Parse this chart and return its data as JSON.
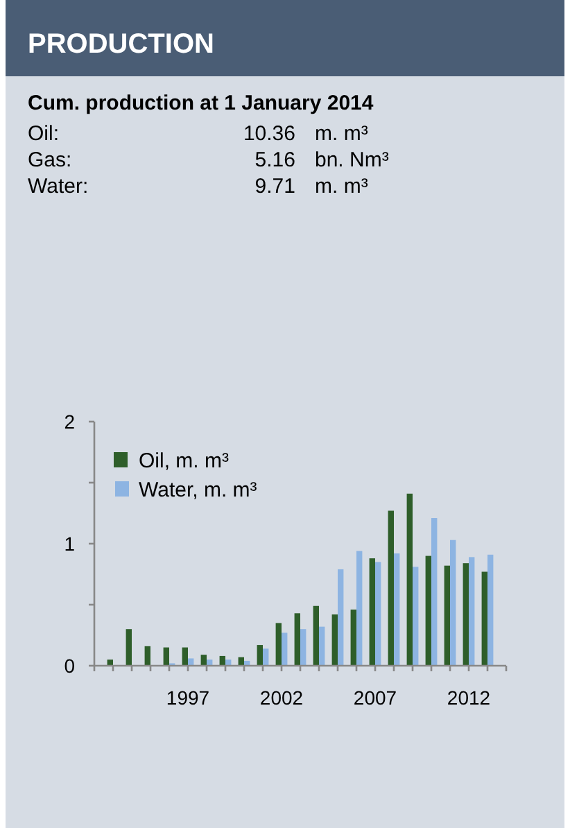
{
  "chart_data": {
    "type": "bar",
    "title": "PRODUCTION",
    "subtitle": "Cum. production at 1 January 2014",
    "annotations": [
      "Oil:",
      "10.36",
      "m. m³",
      "Gas:",
      "5.16",
      "bn. Nm³",
      "Water:",
      "9.71",
      "m. m³"
    ],
    "categories": [
      null,
      null,
      null,
      null,
      "1997",
      null,
      null,
      null,
      null,
      "2002",
      null,
      null,
      null,
      null,
      "2007",
      null,
      null,
      null,
      null,
      "2012",
      null
    ],
    "series": [
      {
        "name": "Oil, m. m³",
        "color": "#2e5e2a",
        "values": [
          0.05,
          0.3,
          0.16,
          0.15,
          0.15,
          0.09,
          0.08,
          0.07,
          0.17,
          0.35,
          0.43,
          0.49,
          0.42,
          0.46,
          0.88,
          1.27,
          1.41,
          0.9,
          0.82,
          0.84,
          0.77
        ]
      },
      {
        "name": "Water, m. m³",
        "color": "#8db4e2",
        "values": [
          null,
          null,
          null,
          0.02,
          0.06,
          0.05,
          0.05,
          0.04,
          0.14,
          0.27,
          0.3,
          0.32,
          0.79,
          0.94,
          0.85,
          0.92,
          0.81,
          1.21,
          1.03,
          0.89,
          0.91
        ]
      }
    ],
    "ylim": [
      0,
      2
    ],
    "yticks": [
      0,
      {
        "value": 0.5,
        "label": null
      },
      1,
      {
        "value": 1.5,
        "label": null
      },
      2
    ],
    "grid": false,
    "legend": "top left"
  }
}
